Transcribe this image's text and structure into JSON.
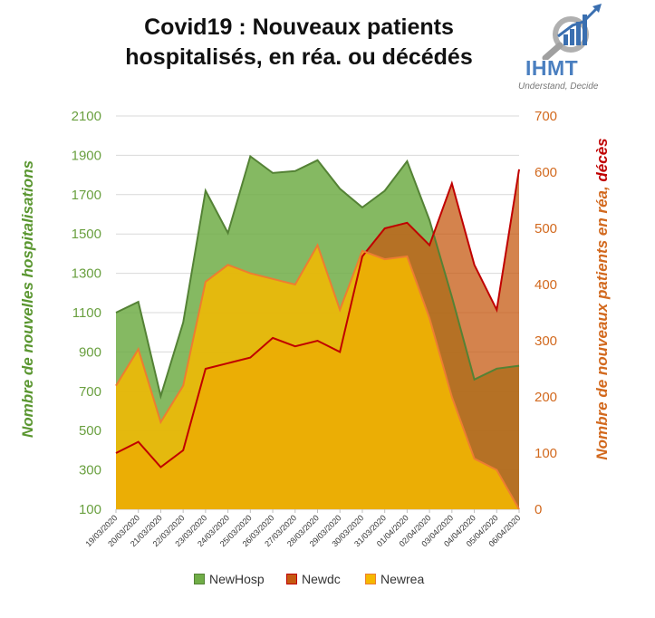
{
  "title_line1": "Covid19 : Nouveaux patients",
  "title_line2": "hospitalisés, en réa. ou décédés",
  "logo": {
    "brand": "IHMT",
    "tagline": "Understand, Decide",
    "icon": "chart-magnifier-icon"
  },
  "chart_data": {
    "type": "area",
    "categories": [
      "19/03/2020",
      "20/03/2020",
      "21/03/2020",
      "22/03/2020",
      "23/03/2020",
      "24/03/2020",
      "25/03/2020",
      "26/03/2020",
      "27/03/2020",
      "28/03/2020",
      "29/03/2020",
      "30/03/2020",
      "31/03/2020",
      "01/04/2020",
      "02/04/2020",
      "03/04/2020",
      "04/04/2020",
      "05/04/2020",
      "06/04/2020"
    ],
    "y_left": {
      "label": "Nombre de nouvelles hospitalisations",
      "ylim": [
        100,
        2100
      ],
      "ticks": [
        100,
        300,
        500,
        700,
        900,
        1100,
        1300,
        1500,
        1700,
        1900,
        2100
      ]
    },
    "y_right": {
      "label_part1": "Nombre de nouveaux patients en réa, ",
      "label_part2": "décès",
      "ylim": [
        0,
        700
      ],
      "ticks": [
        0,
        100,
        200,
        300,
        400,
        500,
        600,
        700
      ]
    },
    "series": [
      {
        "name": "NewHosp",
        "axis": "left",
        "color": "#70ad47",
        "line": "#548235",
        "values": [
          1100,
          1155,
          675,
          1050,
          1720,
          1505,
          1895,
          1810,
          1820,
          1875,
          1730,
          1635,
          1720,
          1870,
          1570,
          1180,
          760,
          815,
          830
        ]
      },
      {
        "name": "Newdc",
        "axis": "right",
        "color": "#c55a11",
        "line": "#c00000",
        "values": [
          100,
          120,
          75,
          105,
          250,
          260,
          270,
          305,
          290,
          300,
          280,
          450,
          500,
          510,
          470,
          580,
          435,
          355,
          605
        ]
      },
      {
        "name": "Newrea",
        "axis": "right",
        "color": "#f5b800",
        "line": "#ed7d31",
        "values": [
          220,
          285,
          155,
          220,
          405,
          435,
          420,
          410,
          400,
          470,
          355,
          460,
          445,
          450,
          340,
          200,
          90,
          70,
          0
        ]
      }
    ],
    "legend_position": "bottom",
    "grid": true
  }
}
